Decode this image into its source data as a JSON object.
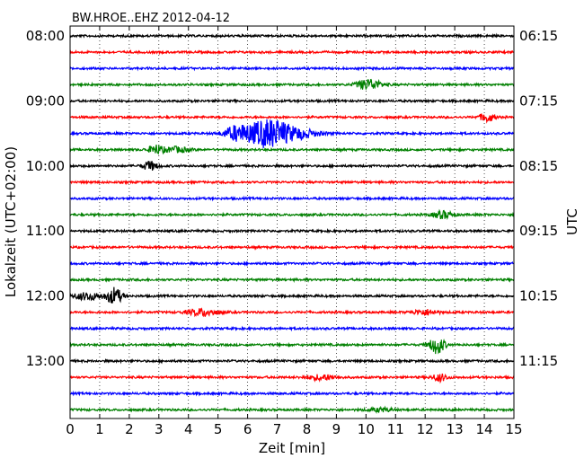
{
  "chart_data": {
    "type": "line",
    "title": "BW.HROE..EHZ 2012-04-12",
    "xlabel": "Zeit  [min]",
    "ylabel": "Lokalzeit (UTC+02:00)",
    "ylabel_right": "UTC",
    "xlim": [
      0,
      15
    ],
    "x_ticks": [
      "0",
      "1",
      "2",
      "3",
      "4",
      "5",
      "6",
      "7",
      "8",
      "9",
      "10",
      "11",
      "12",
      "13",
      "14",
      "15"
    ],
    "grid": "vertical dotted at every minute",
    "row_minutes": 15,
    "row_count": 24,
    "series_colors": [
      "#000000",
      "#ff0000",
      "#0000ff",
      "#008000"
    ],
    "left_ticks": [
      {
        "row": 0,
        "label": "08:00"
      },
      {
        "row": 4,
        "label": "09:00"
      },
      {
        "row": 8,
        "label": "10:00"
      },
      {
        "row": 12,
        "label": "11:00"
      },
      {
        "row": 16,
        "label": "12:00"
      },
      {
        "row": 20,
        "label": "13:00"
      }
    ],
    "right_ticks": [
      {
        "row": 0,
        "label": "06:15"
      },
      {
        "row": 4,
        "label": "07:15"
      },
      {
        "row": 8,
        "label": "08:15"
      },
      {
        "row": 12,
        "label": "09:15"
      },
      {
        "row": 16,
        "label": "10:15"
      },
      {
        "row": 20,
        "label": "11:15"
      }
    ],
    "events": [
      {
        "row": 3,
        "t": 10.1,
        "amp": 6,
        "width": 0.5
      },
      {
        "row": 5,
        "t": 14.1,
        "amp": 5,
        "width": 0.3
      },
      {
        "row": 6,
        "t": 6.7,
        "amp": 16,
        "width": 0.9
      },
      {
        "row": 6,
        "t": 5.6,
        "amp": 7,
        "width": 0.5
      },
      {
        "row": 6,
        "t": 7.8,
        "amp": 4,
        "width": 0.8
      },
      {
        "row": 7,
        "t": 2.9,
        "amp": 5,
        "width": 0.3
      },
      {
        "row": 7,
        "t": 3.6,
        "amp": 3,
        "width": 0.5
      },
      {
        "row": 8,
        "t": 2.7,
        "amp": 5,
        "width": 0.3
      },
      {
        "row": 11,
        "t": 12.6,
        "amp": 4,
        "width": 0.4
      },
      {
        "row": 16,
        "t": 1.5,
        "amp": 9,
        "width": 0.3
      },
      {
        "row": 16,
        "t": 0.6,
        "amp": 4,
        "width": 0.6
      },
      {
        "row": 17,
        "t": 4.5,
        "amp": 4,
        "width": 0.6
      },
      {
        "row": 17,
        "t": 12.0,
        "amp": 3,
        "width": 0.5
      },
      {
        "row": 19,
        "t": 12.4,
        "amp": 10,
        "width": 0.3
      },
      {
        "row": 21,
        "t": 8.5,
        "amp": 3,
        "width": 0.6
      },
      {
        "row": 21,
        "t": 12.5,
        "amp": 4,
        "width": 0.3
      },
      {
        "row": 23,
        "t": 10.5,
        "amp": 2,
        "width": 0.5
      }
    ]
  }
}
